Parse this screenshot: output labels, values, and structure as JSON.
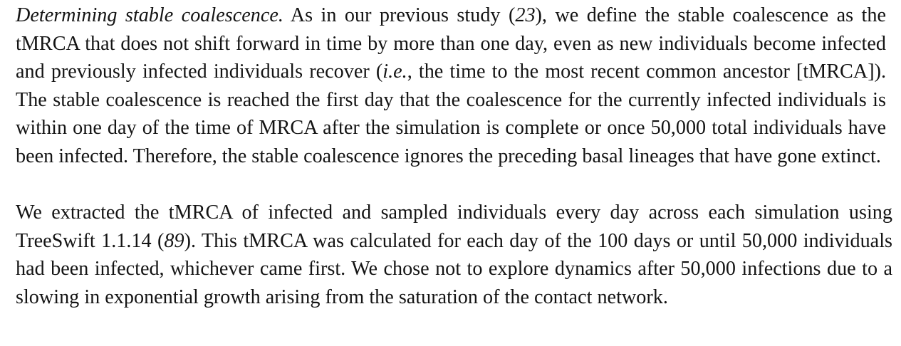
{
  "paragraph1": {
    "heading": "Determining stable coalescence.",
    "t1": " As in our previous study (",
    "ref1": "23",
    "t2": "), we define the stable coalescence as the tMRCA that does not shift forward in time by more than one day, even as new individuals become infected and previously infected individuals recover (",
    "ie": "i.e.",
    "t3": ", the time to the most recent common ancestor [tMRCA]). The stable coalescence is reached the first day that the coalescence for the currently infected individuals is within one day of the time of MRCA after the simulation is complete or once 50,000 total individuals have been infected. Therefore, the stable coalescence ignores the preceding basal lineages that have gone extinct."
  },
  "paragraph2": {
    "t1": "We extracted the tMRCA of infected and sampled individuals every day across each simulation using TreeSwift 1.1.14 (",
    "ref1": "89",
    "t2": "). This tMRCA was calculated for each day of the 100 days or until 50,000 individuals had been infected, whichever came first. We chose not to explore dynamics after 50,000 infections due to a slowing in exponential growth arising from the saturation of the contact network."
  }
}
